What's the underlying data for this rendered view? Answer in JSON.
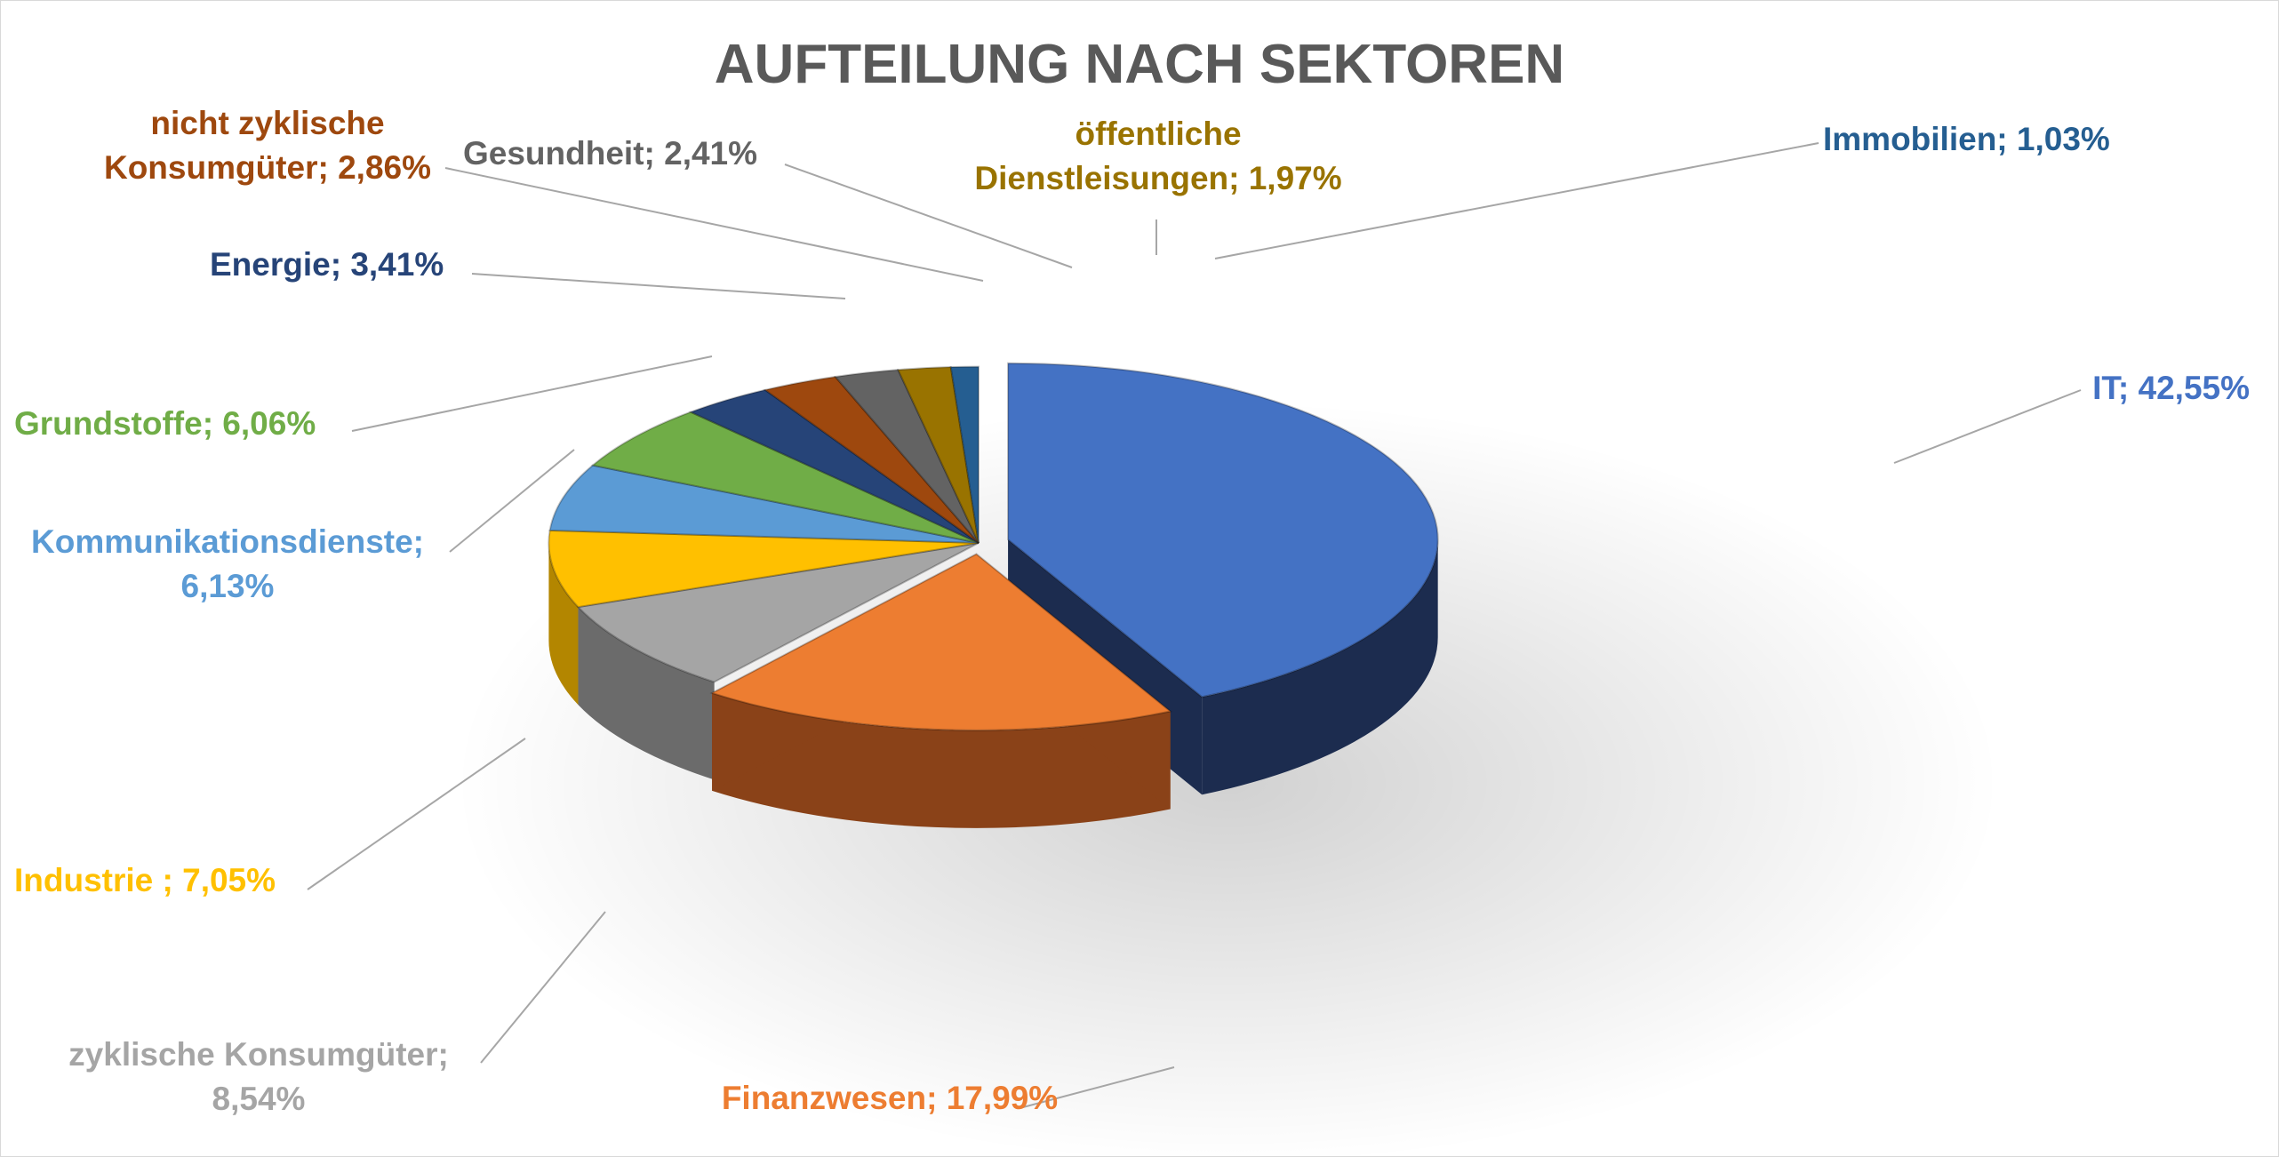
{
  "chart_data": {
    "type": "pie",
    "title": "AUFTEILUNG NACH SEKTOREN",
    "slices": [
      {
        "category": "IT",
        "value": 42.55,
        "label": "IT; 42,55%",
        "color": "#4472c4",
        "side": "#1c2c4f"
      },
      {
        "category": "Finanzwesen",
        "value": 17.99,
        "label": "Finanzwesen; 17,99%",
        "color": "#ed7d31",
        "side": "#8a4218"
      },
      {
        "category": "zyklische Konsumgüter",
        "value": 8.54,
        "label": "zyklische Konsumgüter; 8,54%",
        "color": "#a5a5a5",
        "side": "#6b6b6b"
      },
      {
        "category": "Industrie",
        "value": 7.05,
        "label": "Industrie ; 7,05%",
        "color": "#ffc000",
        "side": "#b38600"
      },
      {
        "category": "Kommunikationsdienste",
        "value": 6.13,
        "label": "Kommunikationsdienste; 6,13%",
        "color": "#5b9bd5",
        "side": "#33618c"
      },
      {
        "category": "Grundstoffe",
        "value": 6.06,
        "label": "Grundstoffe; 6,06%",
        "color": "#70ad47",
        "side": "#426b28"
      },
      {
        "category": "Energie",
        "value": 3.41,
        "label": "Energie; 3,41%",
        "color": "#264478",
        "side": "#14264a"
      },
      {
        "category": "nicht zyklische Konsumgüter",
        "value": 2.86,
        "label": "nicht zyklische Konsumgüter; 2,86%",
        "color": "#9e480e",
        "side": "#5e2a08"
      },
      {
        "category": "Gesundheit",
        "value": 2.41,
        "label": "Gesundheit; 2,41%",
        "color": "#636363",
        "side": "#3a3a3a"
      },
      {
        "category": "öffentliche Dienstleisungen",
        "value": 1.97,
        "label": "öffentliche Dienstleisungen; 1,97%",
        "color": "#997300",
        "side": "#5e4700"
      },
      {
        "category": "Immobilien",
        "value": 1.03,
        "label": "Immobilien; 1,03%",
        "color": "#255e91",
        "side": "#153a5c"
      }
    ],
    "labels": {
      "it": [
        "IT; 42,55%"
      ],
      "finanzwesen": [
        "Finanzwesen; 17,99%"
      ],
      "zyklische": [
        "zyklische Konsumgüter;",
        "8,54%"
      ],
      "industrie": [
        "Industrie ; 7,05%"
      ],
      "kommunikation": [
        "Kommunikationsdienste;",
        "6,13%"
      ],
      "grundstoffe": [
        "Grundstoffe; 6,06%"
      ],
      "energie": [
        "Energie; 3,41%"
      ],
      "nicht_zyklische": [
        "nicht zyklische",
        "Konsumgüter; 2,86%"
      ],
      "gesundheit": [
        "Gesundheit; 2,41%"
      ],
      "oeffentliche": [
        "öffentliche",
        "Dienstleisungen; 1,97%"
      ],
      "immobilien": [
        "Immobilien; 1,03%"
      ]
    },
    "legend": "none",
    "style": "3d-exploded"
  }
}
